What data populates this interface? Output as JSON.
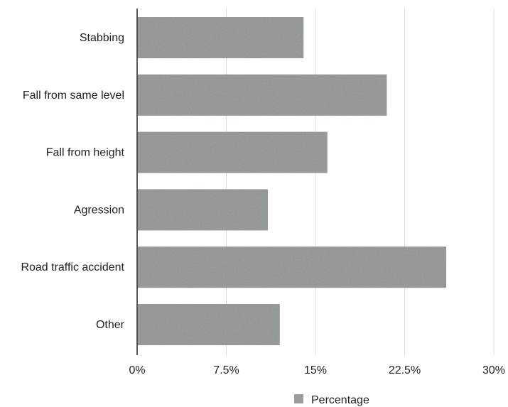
{
  "chart_data": {
    "type": "bar",
    "orientation": "horizontal",
    "categories": [
      "Stabbing",
      "Fall from same level",
      "Fall from height",
      "Agression",
      "Road traffic accident",
      "Other"
    ],
    "series": [
      {
        "name": "Percentage",
        "values": [
          14,
          21,
          16,
          11,
          26,
          12
        ],
        "color": "#9a9d9e"
      }
    ],
    "xticks": [
      "0%",
      "7.5%",
      "15%",
      "22.5%",
      "30%"
    ],
    "xlim": [
      0,
      30
    ],
    "grid": true,
    "legend_position": "bottom"
  }
}
